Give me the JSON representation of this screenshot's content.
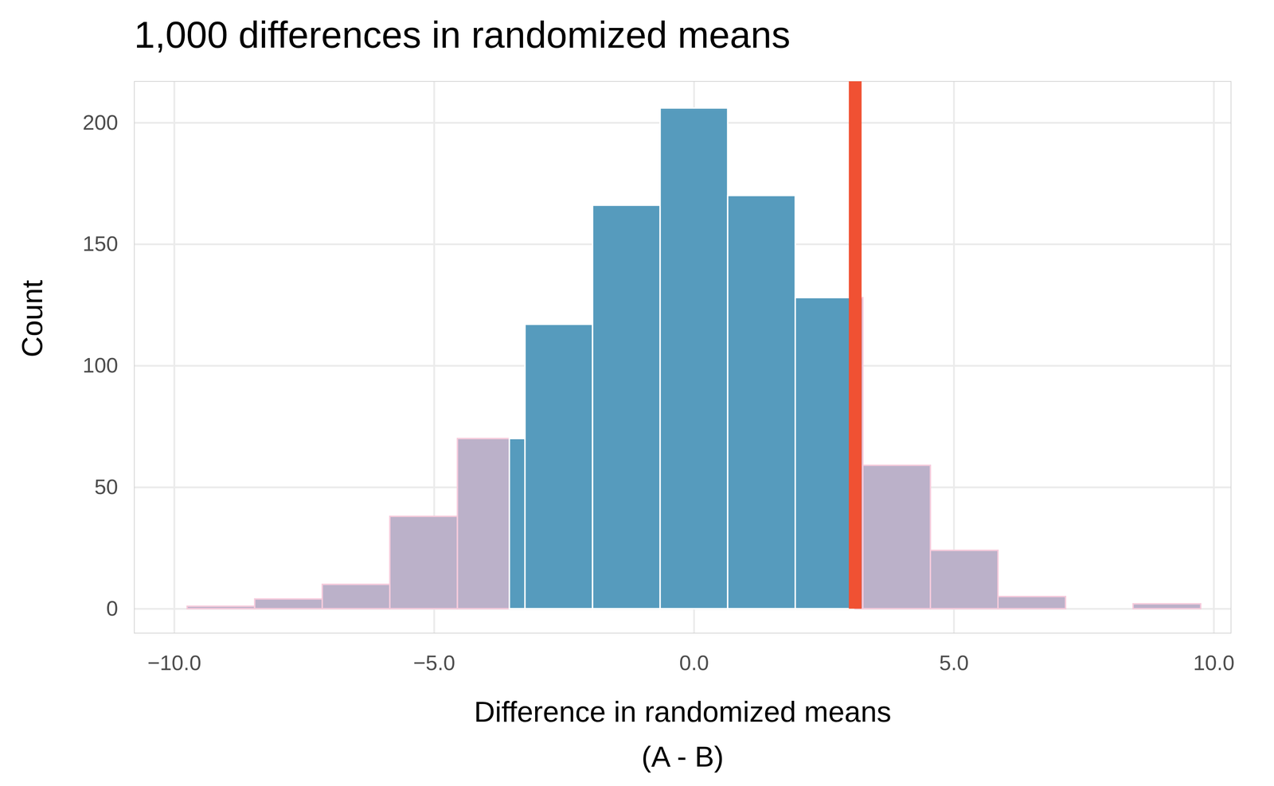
{
  "chart_data": {
    "type": "histogram",
    "title": "1,000 differences in randomized means",
    "x_label": "Difference in randomized means\n(A - B)",
    "y_label": "Count",
    "bins": [
      -9.75,
      -8.45,
      -7.15,
      -5.85,
      -4.55,
      -3.25,
      -1.95,
      -0.65,
      0.65,
      1.95,
      3.25,
      4.55,
      5.85,
      7.15,
      8.45,
      9.75
    ],
    "values": [
      1,
      4,
      10,
      38,
      70,
      117,
      166,
      206,
      170,
      128,
      59,
      24,
      5,
      0,
      2
    ],
    "color": "#569bbd",
    "tail_cutoffs": [
      -3.55,
      3.1
    ],
    "tail_color": "#bbb1c9",
    "reference_line": {
      "value": 3.1,
      "color": "#f05133"
    },
    "xlim": [
      -10.77,
      10.33
    ],
    "xticks": [
      -10,
      -5,
      0,
      5,
      10
    ],
    "ylim": [
      -10,
      217
    ],
    "yticks": [
      0,
      50,
      100,
      150,
      200
    ],
    "grid": true
  }
}
